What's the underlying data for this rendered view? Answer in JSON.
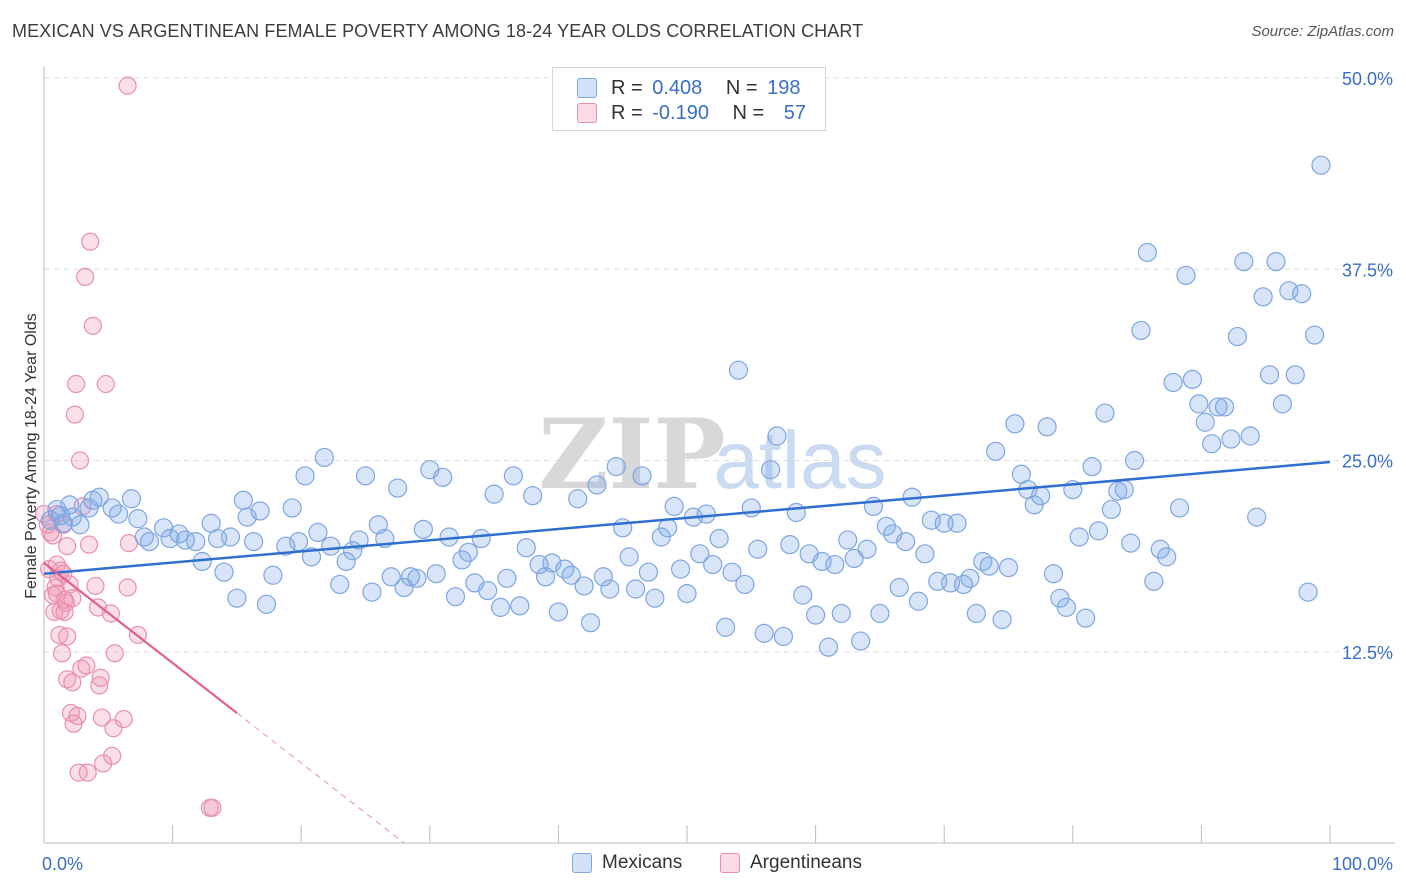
{
  "title": "MEXICAN VS ARGENTINEAN FEMALE POVERTY AMONG 18-24 YEAR OLDS CORRELATION CHART",
  "source": "Source: ZipAtlas.com",
  "watermark": {
    "zip": "ZIP",
    "atlas": "atlas"
  },
  "legend": {
    "mexicans": {
      "r_label": "R =",
      "r_value": "0.408",
      "n_label": "N =",
      "n_value": "198"
    },
    "argentineans": {
      "r_label": "R =",
      "r_value": "-0.190",
      "n_label": "N =",
      "n_value": "57"
    }
  },
  "bottom_legend": {
    "mexicans": "Mexicans",
    "argentineans": "Argentineans"
  },
  "colors": {
    "blue_fill": "rgba(126,170,232,0.30)",
    "blue_stroke": "#7ea6e0",
    "blue_line": "#2f6fd0",
    "pink_fill": "rgba(240,150,180,0.30)",
    "pink_stroke": "#ea8fb0",
    "pink_line": "#e2608f",
    "tick_text": "#3a6fc4",
    "grid": "#dedede"
  },
  "chart_data": {
    "type": "scatter",
    "title": "MEXICAN VS ARGENTINEAN FEMALE POVERTY AMONG 18-24 YEAR OLDS CORRELATION CHART",
    "xlabel": "",
    "ylabel": "Female Poverty Among 18-24 Year Olds",
    "xlim": [
      0,
      100
    ],
    "ylim": [
      0,
      50
    ],
    "x_tick_labels": [
      "0.0%",
      "100.0%"
    ],
    "y_ticks": [
      12.5,
      25.0,
      37.5,
      50.0
    ],
    "y_tick_labels": [
      "12.5%",
      "25.0%",
      "37.5%",
      "50.0%"
    ],
    "grid": true,
    "legend_placement": "top-center",
    "series": [
      {
        "name": "Mexicans",
        "r": 0.408,
        "n": 198,
        "trend": {
          "x": [
            0,
            100
          ],
          "y": [
            17.6,
            24.9
          ]
        },
        "points": [
          [
            0.5,
            21.1
          ],
          [
            1.0,
            21.8
          ],
          [
            1.3,
            21.4
          ],
          [
            1.5,
            20.9
          ],
          [
            2.0,
            22.1
          ],
          [
            2.2,
            21.3
          ],
          [
            2.8,
            20.8
          ],
          [
            3.5,
            21.9
          ],
          [
            3.8,
            22.4
          ],
          [
            4.3,
            22.6
          ],
          [
            5.3,
            21.9
          ],
          [
            5.8,
            21.5
          ],
          [
            6.8,
            22.5
          ],
          [
            7.3,
            21.2
          ],
          [
            7.8,
            20.0
          ],
          [
            8.2,
            19.7
          ],
          [
            9.3,
            20.6
          ],
          [
            9.8,
            19.9
          ],
          [
            10.5,
            20.2
          ],
          [
            11.0,
            19.8
          ],
          [
            11.8,
            19.7
          ],
          [
            12.3,
            18.4
          ],
          [
            13.0,
            20.9
          ],
          [
            13.5,
            19.9
          ],
          [
            14.0,
            17.7
          ],
          [
            14.5,
            20.0
          ],
          [
            15.0,
            16.0
          ],
          [
            15.5,
            22.4
          ],
          [
            15.8,
            21.3
          ],
          [
            16.3,
            19.7
          ],
          [
            16.8,
            21.7
          ],
          [
            17.3,
            15.6
          ],
          [
            17.8,
            17.5
          ],
          [
            18.8,
            19.4
          ],
          [
            19.3,
            21.9
          ],
          [
            19.8,
            19.7
          ],
          [
            20.3,
            24.0
          ],
          [
            20.8,
            18.7
          ],
          [
            21.3,
            20.3
          ],
          [
            21.8,
            25.2
          ],
          [
            22.3,
            19.4
          ],
          [
            23.0,
            16.9
          ],
          [
            23.5,
            18.4
          ],
          [
            24.0,
            19.1
          ],
          [
            24.5,
            19.8
          ],
          [
            25.0,
            24.0
          ],
          [
            25.5,
            16.4
          ],
          [
            26.0,
            20.8
          ],
          [
            26.5,
            19.9
          ],
          [
            27.0,
            17.4
          ],
          [
            27.5,
            23.2
          ],
          [
            28.0,
            16.7
          ],
          [
            28.5,
            17.4
          ],
          [
            29.0,
            17.3
          ],
          [
            29.5,
            20.5
          ],
          [
            30.0,
            24.4
          ],
          [
            30.5,
            17.6
          ],
          [
            31.0,
            23.9
          ],
          [
            31.5,
            20.0
          ],
          [
            32.0,
            16.1
          ],
          [
            32.5,
            18.5
          ],
          [
            33.0,
            19.0
          ],
          [
            33.5,
            17.0
          ],
          [
            34.0,
            19.9
          ],
          [
            34.5,
            16.5
          ],
          [
            35.0,
            22.8
          ],
          [
            35.5,
            15.4
          ],
          [
            36.0,
            17.3
          ],
          [
            36.5,
            24.0
          ],
          [
            37.0,
            15.5
          ],
          [
            37.5,
            19.3
          ],
          [
            38.0,
            22.7
          ],
          [
            38.5,
            18.2
          ],
          [
            39.0,
            17.4
          ],
          [
            39.5,
            18.3
          ],
          [
            40.0,
            15.1
          ],
          [
            40.5,
            17.9
          ],
          [
            41.0,
            17.5
          ],
          [
            41.5,
            22.5
          ],
          [
            42.0,
            16.8
          ],
          [
            42.5,
            14.4
          ],
          [
            43.0,
            23.4
          ],
          [
            43.5,
            17.4
          ],
          [
            44.0,
            16.6
          ],
          [
            44.5,
            24.6
          ],
          [
            45.0,
            20.6
          ],
          [
            45.5,
            18.7
          ],
          [
            46.0,
            16.6
          ],
          [
            46.5,
            24.0
          ],
          [
            47.0,
            17.7
          ],
          [
            47.5,
            16.0
          ],
          [
            48.0,
            20.0
          ],
          [
            48.5,
            20.6
          ],
          [
            49.0,
            22.0
          ],
          [
            49.5,
            17.9
          ],
          [
            50.0,
            16.3
          ],
          [
            50.5,
            21.3
          ],
          [
            51.0,
            18.9
          ],
          [
            51.5,
            21.5
          ],
          [
            52.0,
            18.2
          ],
          [
            52.5,
            19.9
          ],
          [
            53.0,
            14.1
          ],
          [
            53.5,
            17.7
          ],
          [
            54.0,
            30.9
          ],
          [
            54.5,
            16.9
          ],
          [
            55.0,
            21.9
          ],
          [
            55.5,
            19.2
          ],
          [
            56.0,
            13.7
          ],
          [
            56.5,
            24.4
          ],
          [
            57.0,
            26.6
          ],
          [
            57.5,
            13.5
          ],
          [
            58.0,
            19.5
          ],
          [
            58.5,
            21.6
          ],
          [
            59.0,
            16.2
          ],
          [
            59.5,
            18.9
          ],
          [
            60.0,
            14.9
          ],
          [
            60.5,
            18.4
          ],
          [
            61.0,
            12.8
          ],
          [
            61.5,
            18.2
          ],
          [
            62.0,
            15.0
          ],
          [
            62.5,
            19.8
          ],
          [
            63.0,
            18.6
          ],
          [
            63.5,
            13.2
          ],
          [
            64.0,
            19.2
          ],
          [
            64.5,
            22.0
          ],
          [
            65.0,
            15.0
          ],
          [
            65.5,
            20.7
          ],
          [
            66.0,
            20.2
          ],
          [
            66.5,
            16.7
          ],
          [
            67.0,
            19.7
          ],
          [
            67.5,
            22.6
          ],
          [
            68.0,
            15.8
          ],
          [
            68.5,
            18.9
          ],
          [
            69.0,
            21.1
          ],
          [
            69.5,
            17.1
          ],
          [
            70.0,
            20.9
          ],
          [
            70.5,
            17.0
          ],
          [
            71.0,
            20.9
          ],
          [
            71.5,
            16.9
          ],
          [
            72.0,
            17.3
          ],
          [
            72.5,
            15.0
          ],
          [
            73.0,
            18.4
          ],
          [
            73.5,
            18.1
          ],
          [
            74.0,
            25.6
          ],
          [
            74.5,
            14.6
          ],
          [
            75.0,
            18.0
          ],
          [
            75.5,
            27.4
          ],
          [
            76.0,
            24.1
          ],
          [
            76.5,
            23.1
          ],
          [
            77.0,
            22.1
          ],
          [
            77.5,
            22.7
          ],
          [
            78.0,
            27.2
          ],
          [
            78.5,
            17.6
          ],
          [
            79.0,
            16.0
          ],
          [
            79.5,
            15.4
          ],
          [
            80.0,
            23.1
          ],
          [
            80.5,
            20.0
          ],
          [
            81.0,
            14.7
          ],
          [
            81.5,
            24.6
          ],
          [
            82.0,
            20.4
          ],
          [
            82.5,
            28.1
          ],
          [
            83.0,
            21.8
          ],
          [
            83.5,
            23.0
          ],
          [
            84.0,
            23.1
          ],
          [
            84.5,
            19.6
          ],
          [
            84.8,
            25.0
          ],
          [
            85.3,
            33.5
          ],
          [
            85.8,
            38.6
          ],
          [
            86.3,
            17.1
          ],
          [
            86.8,
            19.2
          ],
          [
            87.3,
            18.7
          ],
          [
            87.8,
            30.1
          ],
          [
            88.3,
            21.9
          ],
          [
            88.8,
            37.1
          ],
          [
            89.3,
            30.3
          ],
          [
            89.8,
            28.7
          ],
          [
            90.3,
            27.5
          ],
          [
            90.8,
            26.1
          ],
          [
            91.3,
            28.5
          ],
          [
            91.8,
            28.5
          ],
          [
            92.3,
            26.4
          ],
          [
            92.8,
            33.1
          ],
          [
            93.3,
            38.0
          ],
          [
            93.8,
            26.6
          ],
          [
            94.3,
            21.3
          ],
          [
            94.8,
            35.7
          ],
          [
            95.3,
            30.6
          ],
          [
            95.8,
            38.0
          ],
          [
            96.3,
            28.7
          ],
          [
            96.8,
            36.1
          ],
          [
            97.3,
            30.6
          ],
          [
            97.8,
            35.9
          ],
          [
            98.3,
            16.4
          ],
          [
            98.8,
            33.2
          ],
          [
            99.3,
            44.3
          ]
        ]
      },
      {
        "name": "Argentineans",
        "r": -0.19,
        "n": 57,
        "trend": {
          "x": [
            0,
            15
          ],
          "y": [
            18.3,
            8.5
          ]
        },
        "trend_dashed": {
          "x": [
            15,
            28
          ],
          "y": [
            8.5,
            0
          ]
        },
        "points": [
          [
            0.0,
            21.5
          ],
          [
            0.3,
            20.8
          ],
          [
            0.4,
            17.9
          ],
          [
            0.5,
            20.3
          ],
          [
            0.7,
            20.1
          ],
          [
            0.7,
            16.2
          ],
          [
            0.8,
            15.1
          ],
          [
            0.9,
            16.7
          ],
          [
            1.0,
            21.5
          ],
          [
            1.0,
            18.2
          ],
          [
            1.0,
            16.3
          ],
          [
            1.1,
            17.3
          ],
          [
            1.2,
            13.6
          ],
          [
            1.3,
            17.8
          ],
          [
            1.3,
            15.2
          ],
          [
            1.4,
            12.4
          ],
          [
            1.5,
            20.8
          ],
          [
            1.5,
            17.6
          ],
          [
            1.6,
            15.9
          ],
          [
            1.6,
            15.1
          ],
          [
            1.7,
            15.7
          ],
          [
            1.8,
            19.4
          ],
          [
            1.8,
            13.5
          ],
          [
            1.8,
            10.7
          ],
          [
            2.0,
            16.9
          ],
          [
            2.1,
            8.5
          ],
          [
            2.2,
            16.0
          ],
          [
            2.2,
            10.5
          ],
          [
            2.3,
            7.8
          ],
          [
            2.4,
            28.0
          ],
          [
            2.5,
            30.0
          ],
          [
            2.6,
            8.3
          ],
          [
            2.7,
            4.6
          ],
          [
            2.8,
            25.0
          ],
          [
            2.9,
            11.4
          ],
          [
            3.0,
            22.0
          ],
          [
            3.2,
            37.0
          ],
          [
            3.3,
            11.6
          ],
          [
            3.4,
            4.6
          ],
          [
            3.5,
            19.5
          ],
          [
            3.6,
            39.3
          ],
          [
            3.8,
            33.8
          ],
          [
            4.0,
            16.8
          ],
          [
            4.2,
            15.4
          ],
          [
            4.3,
            10.3
          ],
          [
            4.4,
            10.8
          ],
          [
            4.5,
            8.2
          ],
          [
            4.6,
            5.2
          ],
          [
            4.8,
            30.0
          ],
          [
            5.2,
            15.0
          ],
          [
            5.3,
            5.7
          ],
          [
            5.4,
            7.5
          ],
          [
            5.5,
            12.4
          ],
          [
            6.2,
            8.1
          ],
          [
            6.5,
            16.7
          ],
          [
            6.6,
            19.6
          ],
          [
            7.3,
            13.6
          ],
          [
            12.9,
            2.3
          ],
          [
            13.1,
            2.3
          ],
          [
            6.5,
            49.5
          ]
        ]
      }
    ]
  }
}
